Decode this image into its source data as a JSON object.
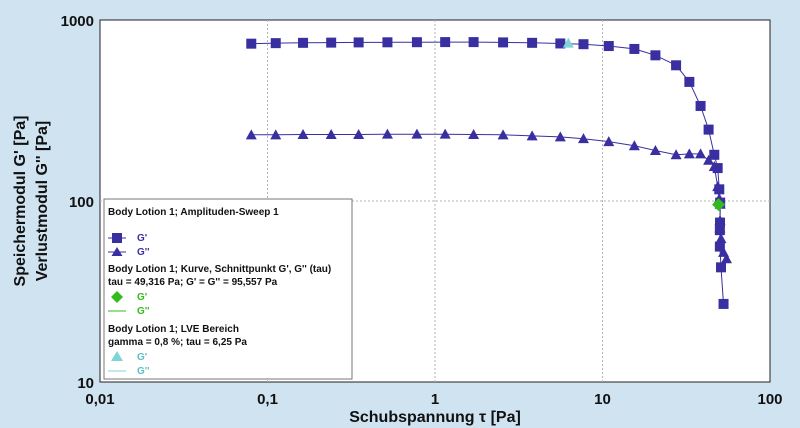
{
  "chart_data": {
    "type": "scatter",
    "x_scale": "log",
    "y_scale": "log",
    "xlim": [
      0.01,
      100
    ],
    "ylim": [
      10,
      1000
    ],
    "x_ticks": [
      "0,01",
      "0,1",
      "1",
      "10",
      "100"
    ],
    "y_ticks": [
      "1000",
      "100",
      "10"
    ],
    "xlabel": "Schubspannung τ [Pa]",
    "ylabel_line1": "Speichermodul G' [Pa]",
    "ylabel_line2": "Verlustmodul G'' [Pa]",
    "grid": true,
    "legend_position": "bottom-left",
    "series": [
      {
        "name": "G'",
        "marker": "square",
        "color": "#3a2fa0",
        "x": [
          0.08,
          0.112,
          0.163,
          0.24,
          0.35,
          0.52,
          0.78,
          1.15,
          1.7,
          2.55,
          3.8,
          5.6,
          7.7,
          10.9,
          15.5,
          20.7,
          27.5,
          33.0,
          38.5,
          43.0,
          46.5,
          48.7,
          49.8,
          50.4,
          50.3,
          50.2,
          50.2,
          51.0,
          52.8
        ],
        "y": [
          740,
          745,
          748,
          750,
          752,
          753,
          754,
          755,
          755,
          752,
          748,
          742,
          735,
          718,
          692,
          638,
          562,
          455,
          335,
          248,
          180,
          152,
          116,
          98,
          76,
          69,
          56,
          43,
          27
        ]
      },
      {
        "name": "G''",
        "marker": "triangle",
        "color": "#3a2fa0",
        "x": [
          0.08,
          0.112,
          0.163,
          0.24,
          0.35,
          0.52,
          0.78,
          1.15,
          1.7,
          2.55,
          3.8,
          5.6,
          7.7,
          10.9,
          15.5,
          20.7,
          27.5,
          33.0,
          38.5,
          43.0,
          46.5,
          48.7,
          49.8,
          50.4,
          50.3,
          50.2,
          51.0,
          52.8,
          55.0
        ],
        "y": [
          232,
          232,
          233,
          233,
          233,
          234,
          234,
          234,
          233,
          232,
          229,
          226,
          221,
          213,
          202,
          190,
          180,
          182,
          182,
          168,
          155,
          120,
          103,
          96,
          78,
          71,
          62,
          52,
          48
        ]
      },
      {
        "name": "Schnittpunkt G', G'' (tau)",
        "marker": "diamond",
        "color": "#33bb1d",
        "x": [
          49.316
        ],
        "y": [
          95.557
        ]
      },
      {
        "name": "LVE Bereich",
        "marker": "triangle",
        "color": "#7fd4d6",
        "x": [
          6.25
        ],
        "y": [
          745
        ]
      }
    ],
    "legend": {
      "group1_title": "Body Lotion 1; Amplituden-Sweep 1",
      "group1_entries": [
        "G'",
        "G''"
      ],
      "group2_title": "Body Lotion 1; Kurve, Schnittpunkt G', G'' (tau)",
      "group2_subtitle": "tau = 49,316 Pa; G' = G'' = 95,557 Pa",
      "group2_entries": [
        "G'",
        "G''"
      ],
      "group3_title": "Body Lotion 1; LVE Bereich",
      "group3_subtitle": "gamma = 0,8 %; tau = 6,25 Pa",
      "group3_entries": [
        "G'",
        "G''"
      ]
    },
    "colors": {
      "main_series": "#3a2fa0",
      "intersection": "#33bb1d",
      "lve": "#7fd4d6",
      "grid": "#b5b5b5",
      "background": "#cfe3f1"
    }
  }
}
